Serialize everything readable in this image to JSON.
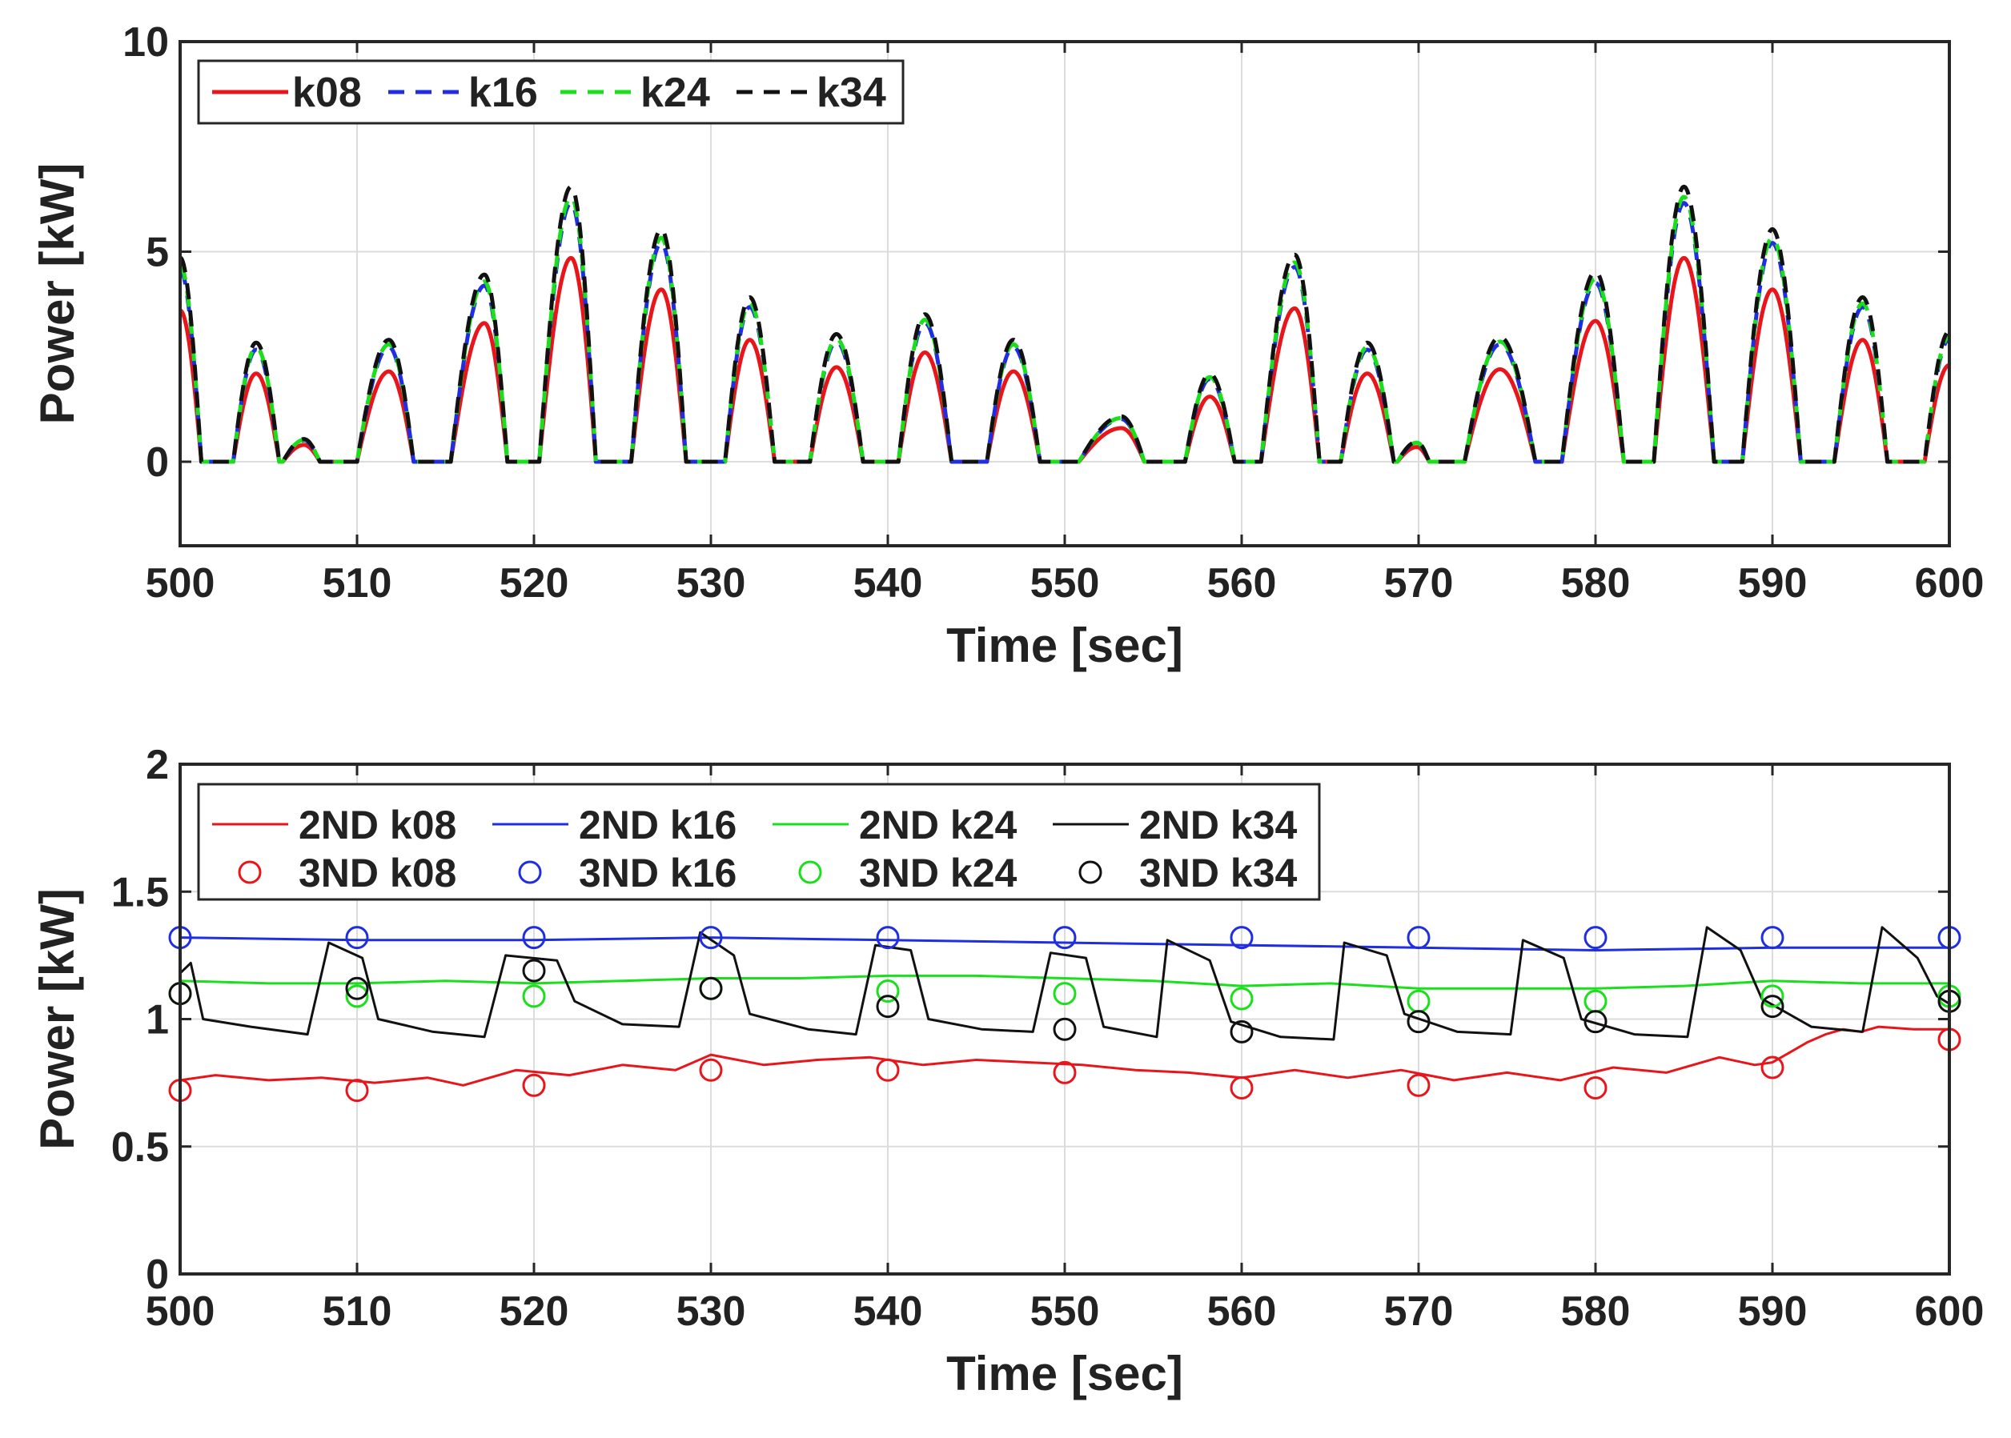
{
  "chart_data": [
    {
      "type": "line",
      "xlabel": "Time [sec]",
      "ylabel": "Power [kW]",
      "xlim": [
        500,
        600
      ],
      "ylim": [
        -2,
        10
      ],
      "xticks": [
        500,
        510,
        520,
        530,
        540,
        550,
        560,
        570,
        580,
        590,
        600
      ],
      "xtick_labels": [
        "500",
        "510",
        "520",
        "530",
        "540",
        "550",
        "560",
        "570",
        "580",
        "590",
        "600"
      ],
      "yticks": [
        0,
        5,
        10
      ],
      "ytick_labels": [
        "0",
        "5",
        "10"
      ],
      "grid": true,
      "legend_position": "top-left",
      "series": [
        {
          "name": "k08",
          "color": "#e8161b",
          "style": "solid",
          "scale": 1.0
        },
        {
          "name": "k16",
          "color": "#1f2ee0",
          "style": "dashed",
          "scale": 1.27
        },
        {
          "name": "k24",
          "color": "#19e01a",
          "style": "dashed",
          "scale": 1.3
        },
        {
          "name": "k34",
          "color": "#111111",
          "style": "dashed",
          "scale": 1.35
        }
      ],
      "pulses": [
        {
          "start": 499.2,
          "end": 501.2,
          "peak_time": 500.0,
          "peak": 3.6
        },
        {
          "start": 503.0,
          "end": 505.6,
          "peak_time": 504.3,
          "peak": 2.1
        },
        {
          "start": 505.8,
          "end": 507.9,
          "peak_time": 507.0,
          "peak": 0.4
        },
        {
          "start": 510.0,
          "end": 513.2,
          "peak_time": 511.8,
          "peak": 2.15
        },
        {
          "start": 515.3,
          "end": 518.5,
          "peak_time": 517.2,
          "peak": 3.3
        },
        {
          "start": 520.3,
          "end": 523.5,
          "peak_time": 522.1,
          "peak": 4.85
        },
        {
          "start": 525.5,
          "end": 528.6,
          "peak_time": 527.2,
          "peak": 4.1
        },
        {
          "start": 530.8,
          "end": 533.6,
          "peak_time": 532.2,
          "peak": 2.9
        },
        {
          "start": 535.6,
          "end": 538.6,
          "peak_time": 537.1,
          "peak": 2.25
        },
        {
          "start": 540.6,
          "end": 543.6,
          "peak_time": 542.1,
          "peak": 2.6
        },
        {
          "start": 545.6,
          "end": 548.6,
          "peak_time": 547.1,
          "peak": 2.15
        },
        {
          "start": 550.8,
          "end": 554.5,
          "peak_time": 553.2,
          "peak": 0.8
        },
        {
          "start": 556.8,
          "end": 559.6,
          "peak_time": 558.2,
          "peak": 1.55
        },
        {
          "start": 561.1,
          "end": 564.4,
          "peak_time": 563.0,
          "peak": 3.65
        },
        {
          "start": 565.6,
          "end": 568.6,
          "peak_time": 567.1,
          "peak": 2.1
        },
        {
          "start": 568.8,
          "end": 570.6,
          "peak_time": 569.9,
          "peak": 0.35
        },
        {
          "start": 572.6,
          "end": 576.6,
          "peak_time": 574.6,
          "peak": 2.2
        },
        {
          "start": 578.1,
          "end": 581.6,
          "peak_time": 580.0,
          "peak": 3.35
        },
        {
          "start": 583.3,
          "end": 586.7,
          "peak_time": 585.0,
          "peak": 4.85
        },
        {
          "start": 588.3,
          "end": 591.6,
          "peak_time": 590.0,
          "peak": 4.1
        },
        {
          "start": 593.5,
          "end": 596.5,
          "peak_time": 595.1,
          "peak": 2.9
        },
        {
          "start": 598.6,
          "end": 601.5,
          "peak_time": 600.0,
          "peak": 2.3
        }
      ]
    },
    {
      "type": "line",
      "xlabel": "Time [sec]",
      "ylabel": "Power [kW]",
      "xlim": [
        500,
        600
      ],
      "ylim": [
        0,
        2
      ],
      "xticks": [
        500,
        510,
        520,
        530,
        540,
        550,
        560,
        570,
        580,
        590,
        600
      ],
      "xtick_labels": [
        "500",
        "510",
        "520",
        "530",
        "540",
        "550",
        "560",
        "570",
        "580",
        "590",
        "600"
      ],
      "yticks": [
        0,
        0.5,
        1,
        1.5,
        2
      ],
      "ytick_labels": [
        "0",
        "0.5",
        "1",
        "1.5",
        "2"
      ],
      "grid": true,
      "legend_position": "top",
      "lines": [
        {
          "name": "2ND k08",
          "color": "#e8161b",
          "x": [
            500,
            502,
            505,
            508,
            511,
            514,
            516,
            519,
            522,
            525,
            528,
            530,
            533,
            536,
            539,
            542,
            545,
            548,
            551,
            554,
            557,
            560,
            563,
            566,
            569,
            572,
            575,
            578,
            581,
            584,
            587,
            589,
            590,
            591,
            592,
            593,
            594,
            595,
            596,
            598,
            600
          ],
          "y": [
            0.76,
            0.78,
            0.76,
            0.77,
            0.75,
            0.77,
            0.74,
            0.8,
            0.78,
            0.82,
            0.8,
            0.86,
            0.82,
            0.84,
            0.85,
            0.82,
            0.84,
            0.83,
            0.82,
            0.8,
            0.79,
            0.77,
            0.8,
            0.77,
            0.8,
            0.76,
            0.79,
            0.76,
            0.81,
            0.79,
            0.85,
            0.82,
            0.83,
            0.87,
            0.91,
            0.94,
            0.96,
            0.95,
            0.97,
            0.96,
            0.96
          ]
        },
        {
          "name": "2ND k16",
          "color": "#1f2ee0",
          "x": [
            500,
            510,
            520,
            530,
            540,
            550,
            560,
            570,
            580,
            590,
            600
          ],
          "y": [
            1.32,
            1.31,
            1.31,
            1.32,
            1.31,
            1.3,
            1.29,
            1.28,
            1.27,
            1.28,
            1.28
          ]
        },
        {
          "name": "2ND k24",
          "color": "#19e01a",
          "x": [
            500,
            505,
            510,
            515,
            520,
            525,
            530,
            535,
            540,
            545,
            550,
            555,
            560,
            565,
            570,
            575,
            580,
            585,
            590,
            595,
            600
          ],
          "y": [
            1.15,
            1.14,
            1.14,
            1.15,
            1.14,
            1.15,
            1.16,
            1.16,
            1.17,
            1.17,
            1.16,
            1.15,
            1.13,
            1.14,
            1.12,
            1.12,
            1.12,
            1.13,
            1.15,
            1.14,
            1.14
          ]
        },
        {
          "name": "2ND k34",
          "color": "#111111",
          "x": [
            500,
            500.6,
            501.3,
            504,
            507.2,
            508.4,
            510.3,
            511.2,
            514.3,
            517.2,
            518.4,
            521.3,
            522.3,
            525,
            528.2,
            529.4,
            531.3,
            532.2,
            535.5,
            538.2,
            539.3,
            541.3,
            542.3,
            545.3,
            548.2,
            549.2,
            551.2,
            552.2,
            555.2,
            555.8,
            558.2,
            559.4,
            562.2,
            565.2,
            565.8,
            568.2,
            569.2,
            572.2,
            575.2,
            575.9,
            578.2,
            579.2,
            582.2,
            585.2,
            586.3,
            588.2,
            589.4,
            592.2,
            595.1,
            596.2,
            598.2,
            599.3,
            600
          ],
          "y": [
            1.18,
            1.22,
            1.0,
            0.97,
            0.94,
            1.3,
            1.24,
            1.0,
            0.95,
            0.93,
            1.25,
            1.23,
            1.07,
            0.98,
            0.97,
            1.34,
            1.25,
            1.02,
            0.96,
            0.94,
            1.29,
            1.27,
            1.0,
            0.96,
            0.95,
            1.26,
            1.24,
            0.97,
            0.93,
            1.31,
            1.23,
            0.99,
            0.93,
            0.92,
            1.3,
            1.25,
            1.02,
            0.95,
            0.94,
            1.31,
            1.24,
            1.0,
            0.94,
            0.93,
            1.36,
            1.27,
            1.08,
            0.97,
            0.95,
            1.36,
            1.24,
            1.09,
            1.06
          ]
        }
      ],
      "markers": [
        {
          "name": "3ND k08",
          "color": "#e8161b",
          "x": [
            500,
            510,
            520,
            530,
            540,
            550,
            560,
            570,
            580,
            590,
            600
          ],
          "y": [
            0.72,
            0.72,
            0.74,
            0.8,
            0.8,
            0.79,
            0.73,
            0.74,
            0.73,
            0.81,
            0.92
          ]
        },
        {
          "name": "3ND k16",
          "color": "#1f2ee0",
          "x": [
            500,
            510,
            520,
            530,
            540,
            550,
            560,
            570,
            580,
            590,
            600
          ],
          "y": [
            1.32,
            1.32,
            1.32,
            1.32,
            1.32,
            1.32,
            1.32,
            1.32,
            1.32,
            1.32,
            1.32
          ]
        },
        {
          "name": "3ND k24",
          "color": "#19e01a",
          "x": [
            500,
            510,
            520,
            530,
            540,
            550,
            560,
            570,
            580,
            590,
            600
          ],
          "y": [
            1.1,
            1.09,
            1.09,
            1.12,
            1.11,
            1.1,
            1.08,
            1.07,
            1.07,
            1.09,
            1.09
          ]
        },
        {
          "name": "3ND k34",
          "color": "#111111",
          "x": [
            500,
            510,
            520,
            530,
            540,
            550,
            560,
            570,
            580,
            590,
            600
          ],
          "y": [
            1.1,
            1.12,
            1.19,
            1.12,
            1.05,
            0.96,
            0.95,
            0.99,
            0.99,
            1.05,
            1.07
          ]
        }
      ],
      "legend": [
        {
          "name": "2ND k08",
          "kind": "line",
          "color": "#e8161b"
        },
        {
          "name": "2ND k16",
          "kind": "line",
          "color": "#1f2ee0"
        },
        {
          "name": "2ND k24",
          "kind": "line",
          "color": "#19e01a"
        },
        {
          "name": "2ND k34",
          "kind": "line",
          "color": "#111111"
        },
        {
          "name": "3ND k08",
          "kind": "marker",
          "color": "#e8161b"
        },
        {
          "name": "3ND k16",
          "kind": "marker",
          "color": "#1f2ee0"
        },
        {
          "name": "3ND k24",
          "kind": "marker",
          "color": "#19e01a"
        },
        {
          "name": "3ND k34",
          "kind": "marker",
          "color": "#111111"
        }
      ]
    }
  ]
}
